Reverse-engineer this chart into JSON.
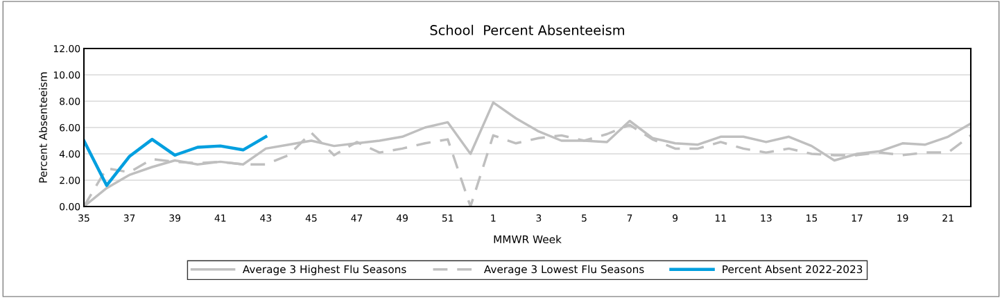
{
  "chart_data": {
    "type": "line",
    "title": "School  Percent Absenteeism",
    "xlabel": "MMWR Week",
    "ylabel": "Percent Absenteeism",
    "categories": [
      "35",
      null,
      "37",
      null,
      "39",
      null,
      "41",
      null,
      "43",
      null,
      "45",
      null,
      "47",
      null,
      "49",
      null,
      "51",
      null,
      "1",
      null,
      "3",
      null,
      "5",
      null,
      "7",
      null,
      "9",
      null,
      "11",
      null,
      "13",
      null,
      "15",
      null,
      "17",
      null,
      "19",
      null,
      "21",
      null
    ],
    "series": [
      {
        "name": "Average 3 Highest Flu Seasons",
        "color": "#bfbfbf",
        "line_style": "solid",
        "values": [
          0.0,
          1.4,
          2.4,
          3.0,
          3.5,
          3.2,
          3.4,
          3.2,
          4.4,
          4.7,
          5.0,
          4.6,
          4.8,
          5.0,
          5.3,
          6.0,
          6.4,
          4.0,
          7.9,
          6.7,
          5.7,
          5.0,
          5.0,
          4.9,
          6.5,
          5.2,
          4.8,
          4.7,
          5.3,
          5.3,
          4.9,
          5.3,
          4.6,
          3.5,
          4.0,
          4.2,
          4.8,
          4.7,
          5.3,
          6.3
        ]
      },
      {
        "name": "Average 3 Lowest Flu Seasons",
        "color": "#bfbfbf",
        "line_style": "dashed",
        "values": [
          0.0,
          2.9,
          2.6,
          3.6,
          3.4,
          3.3,
          3.4,
          3.2,
          3.2,
          3.9,
          5.6,
          3.9,
          4.9,
          4.1,
          4.4,
          4.8,
          5.1,
          0.0,
          5.4,
          4.8,
          5.2,
          5.4,
          5.0,
          5.5,
          6.2,
          5.1,
          4.4,
          4.4,
          4.9,
          4.4,
          4.1,
          4.4,
          4.0,
          3.9,
          3.9,
          4.1,
          3.9,
          4.1,
          4.1,
          5.4
        ]
      },
      {
        "name": "Percent Absent 2022-2023",
        "color": "#009fdf",
        "line_style": "solid",
        "values": [
          5.0,
          1.6,
          3.8,
          5.1,
          3.9,
          4.5,
          4.6,
          4.3,
          5.3,
          null,
          null,
          null,
          null,
          null,
          null,
          null,
          null,
          null,
          null,
          null,
          null,
          null,
          null,
          null,
          null,
          null,
          null,
          null,
          null,
          null,
          null,
          null,
          null,
          null,
          null,
          null,
          null,
          null,
          null,
          null
        ]
      }
    ],
    "ylim": [
      0,
      12
    ],
    "yticks": [
      {
        "value": 0,
        "label": "0.00"
      },
      {
        "value": 2,
        "label": "2.00"
      },
      {
        "value": 4,
        "label": "4.00"
      },
      {
        "value": 6,
        "label": "6.00"
      },
      {
        "value": 8,
        "label": "8.00"
      },
      {
        "value": 10,
        "label": "10.00"
      },
      {
        "value": 12,
        "label": "12.00"
      }
    ],
    "grid": "y",
    "legend": "bottom"
  }
}
